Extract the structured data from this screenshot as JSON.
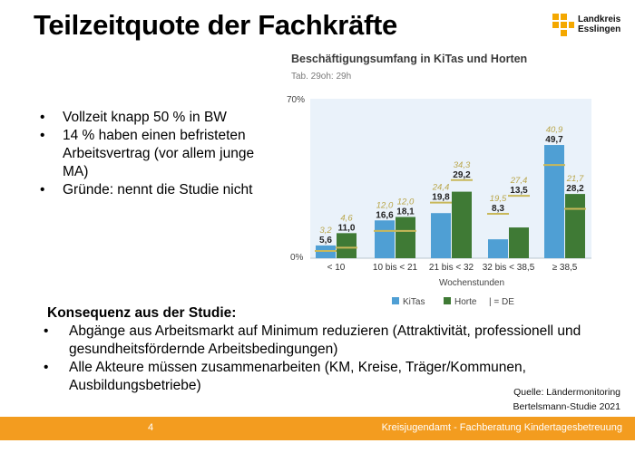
{
  "slide": {
    "title": "Teilzeitquote der Fachkräfte",
    "logo": {
      "line1": "Landkreis",
      "line2": "Esslingen"
    },
    "bullets": [
      "Vollzeit knapp 50 % in BW",
      "14 % haben einen befristeten Arbeitsvertrag (vor allem junge MA)",
      "Gründe: nennt die Studie nicht"
    ],
    "consequence": {
      "heading": "Konsequenz aus der Studie:",
      "items": [
        "Abgänge aus Arbeitsmarkt auf Minimum reduzieren (Attraktivität, professionell und gesundheitsfördernde Arbeitsbedingungen)",
        "Alle Akteure müssen zusammenarbeiten (KM, Kreise, Träger/Kommunen, Ausbildungsbetriebe)"
      ]
    },
    "source": {
      "line1": "Quelle: Ländermonitoring",
      "line2": "Bertelsmann-Studie 2021"
    },
    "footer": {
      "page_number": "4",
      "department": "Kreisjugendamt - Fachberatung Kindertagesbetreuung"
    },
    "colors": {
      "kitas": "#4f9fd4",
      "horte": "#3f7a35",
      "de_line": "#c8b85a",
      "footer": "#f39c1f"
    }
  },
  "chart_data": {
    "type": "bar",
    "title": "Beschäftigungsumfang in KiTas und Horten",
    "subtitle": "Tab. 29oh: 29h",
    "xlabel": "Wochenstunden",
    "ylabel": "",
    "ylim": [
      0,
      70
    ],
    "y_tick_labels": [
      "0%",
      "70%"
    ],
    "categories": [
      "< 10",
      "10 bis < 21",
      "21 bis < 32",
      "32 bis < 38,5",
      "≥ 38,5"
    ],
    "series": [
      {
        "name": "KiTas",
        "values": [
          5.6,
          16.6,
          19.8,
          8.3,
          49.7
        ],
        "labels": [
          "5,6",
          "16,6",
          "19,8",
          "8,3",
          "49,7"
        ],
        "de_values": [
          3.2,
          12.0,
          24.4,
          19.5,
          40.9
        ],
        "de_labels": [
          "3,2",
          "12,0",
          "24,4",
          "19,5",
          "40,9"
        ]
      },
      {
        "name": "Horte",
        "values": [
          11.0,
          18.1,
          29.2,
          13.5,
          28.2
        ],
        "labels": [
          "11,0",
          "18,1",
          "29,2",
          "13,5",
          "28,2"
        ],
        "de_values": [
          4.6,
          12.0,
          34.3,
          27.4,
          21.7
        ],
        "de_labels": [
          "4,6",
          "12,0",
          "34,3",
          "27,4",
          "21,7"
        ]
      }
    ],
    "legend": [
      "KiTas",
      "Horte",
      "| = DE"
    ],
    "legend_position": "bottom"
  }
}
